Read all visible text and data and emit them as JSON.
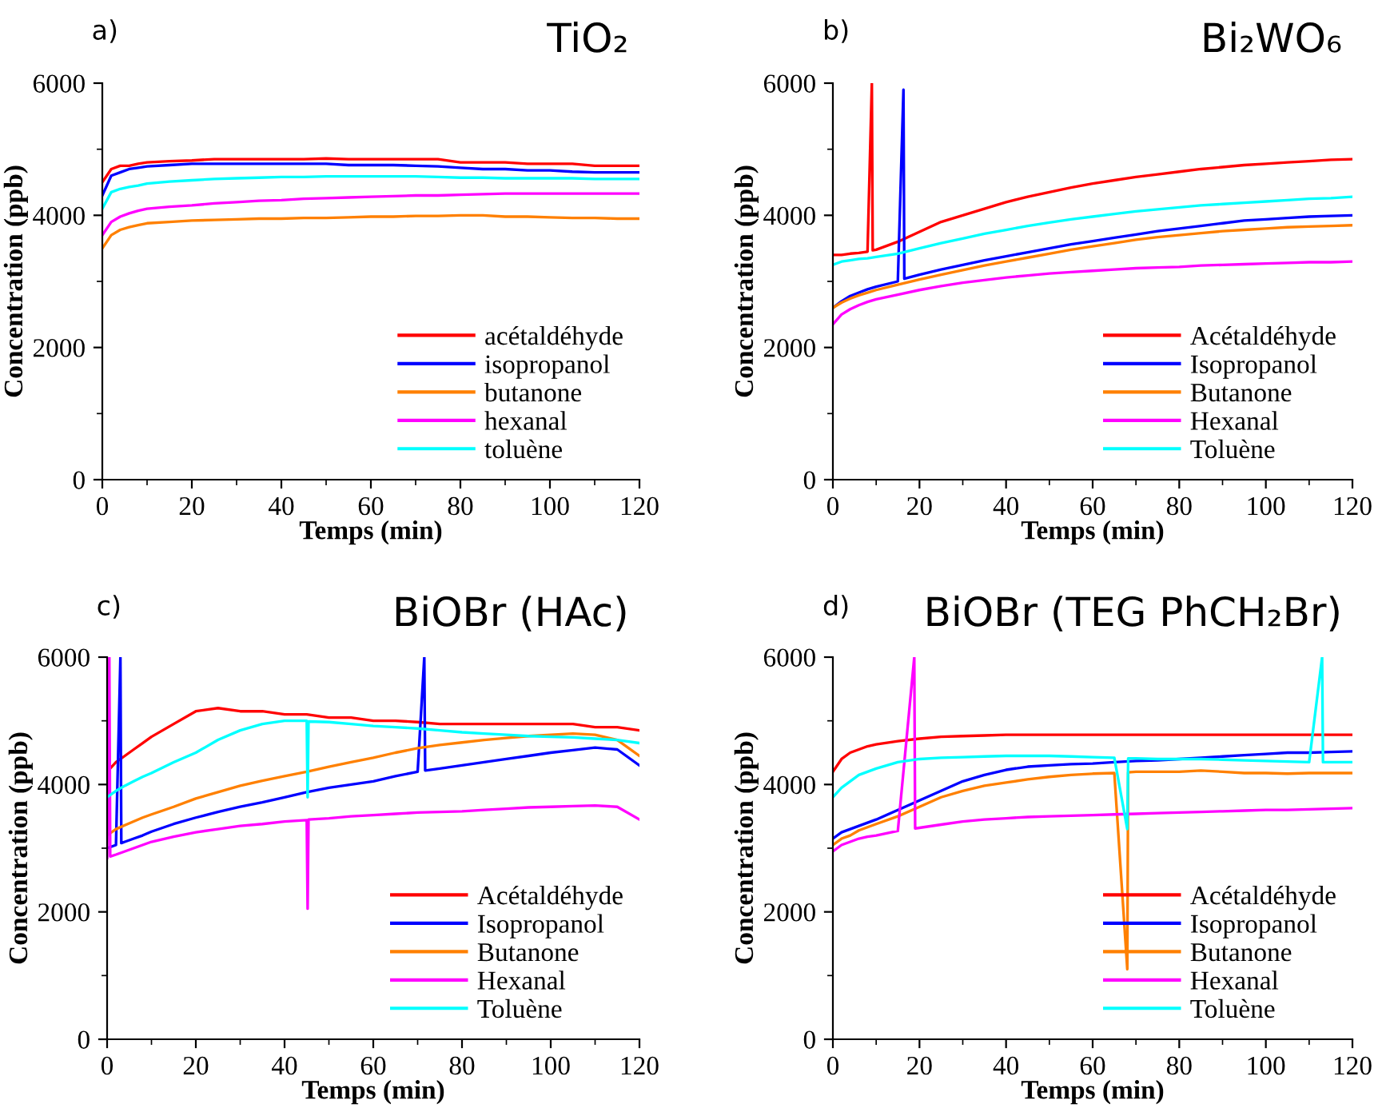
{
  "chart_data": [
    {
      "type": "line",
      "title": "TiO₂",
      "annotations": [
        "a)"
      ],
      "xlabel": "Temps (min)",
      "ylabel": "Concentration (ppb)",
      "xlim": [
        0,
        120
      ],
      "ylim": [
        0,
        6000
      ],
      "xticks": [
        0,
        20,
        40,
        60,
        80,
        100,
        120
      ],
      "yticks": [
        0,
        2000,
        4000,
        6000
      ],
      "grid": false,
      "legend": "bottom right",
      "marker": "none",
      "line_style": "solid",
      "series": [
        {
          "name": "acétaldéhyde",
          "color": "#ff0000",
          "x": [
            0,
            2,
            4,
            6,
            8,
            10,
            15,
            20,
            25,
            30,
            35,
            40,
            45,
            50,
            55,
            60,
            65,
            70,
            75,
            80,
            85,
            90,
            95,
            100,
            105,
            110,
            115,
            120
          ],
          "values": [
            4500,
            4700,
            4750,
            4750,
            4780,
            4800,
            4820,
            4830,
            4850,
            4850,
            4850,
            4850,
            4850,
            4860,
            4850,
            4850,
            4850,
            4850,
            4850,
            4800,
            4800,
            4800,
            4780,
            4780,
            4780,
            4750,
            4750,
            4750
          ]
        },
        {
          "name": "isopropanol",
          "color": "#0000ff",
          "x": [
            0,
            2,
            4,
            6,
            8,
            10,
            15,
            20,
            25,
            30,
            35,
            40,
            45,
            50,
            55,
            60,
            65,
            70,
            75,
            80,
            85,
            90,
            95,
            100,
            105,
            110,
            115,
            120
          ],
          "values": [
            4300,
            4600,
            4650,
            4700,
            4720,
            4740,
            4760,
            4780,
            4780,
            4780,
            4780,
            4780,
            4780,
            4780,
            4760,
            4760,
            4760,
            4750,
            4740,
            4720,
            4700,
            4700,
            4680,
            4680,
            4660,
            4650,
            4650,
            4650
          ]
        },
        {
          "name": "butanone",
          "color": "#ff8000",
          "x": [
            0,
            2,
            4,
            6,
            8,
            10,
            15,
            20,
            25,
            30,
            35,
            40,
            45,
            50,
            55,
            60,
            65,
            70,
            75,
            80,
            85,
            90,
            95,
            100,
            105,
            110,
            115,
            120
          ],
          "values": [
            3500,
            3700,
            3780,
            3820,
            3850,
            3880,
            3900,
            3920,
            3930,
            3940,
            3950,
            3950,
            3960,
            3960,
            3970,
            3980,
            3980,
            3990,
            3990,
            4000,
            4000,
            3980,
            3980,
            3970,
            3960,
            3960,
            3950,
            3950
          ]
        },
        {
          "name": "hexanal",
          "color": "#ff00ff",
          "x": [
            0,
            2,
            4,
            6,
            8,
            10,
            15,
            20,
            25,
            30,
            35,
            40,
            45,
            50,
            55,
            60,
            65,
            70,
            75,
            80,
            85,
            90,
            95,
            100,
            105,
            110,
            115,
            120
          ],
          "values": [
            3700,
            3900,
            3980,
            4030,
            4070,
            4100,
            4130,
            4150,
            4180,
            4200,
            4220,
            4230,
            4250,
            4260,
            4270,
            4280,
            4290,
            4300,
            4300,
            4310,
            4320,
            4330,
            4330,
            4330,
            4330,
            4330,
            4330,
            4330
          ]
        },
        {
          "name": "toluène",
          "color": "#00ffff",
          "x": [
            0,
            2,
            4,
            6,
            8,
            10,
            15,
            20,
            25,
            30,
            35,
            40,
            45,
            50,
            55,
            60,
            65,
            70,
            75,
            80,
            85,
            90,
            95,
            100,
            105,
            110,
            115,
            120
          ],
          "values": [
            4100,
            4350,
            4400,
            4430,
            4450,
            4480,
            4510,
            4530,
            4550,
            4560,
            4570,
            4580,
            4580,
            4590,
            4590,
            4590,
            4590,
            4590,
            4580,
            4570,
            4570,
            4560,
            4560,
            4560,
            4560,
            4550,
            4550,
            4550
          ]
        }
      ]
    },
    {
      "type": "line",
      "title": "Bi₂WO₆",
      "annotations": [
        "b)"
      ],
      "xlabel": "Temps (min)",
      "ylabel": "Concentration (ppb)",
      "xlim": [
        0,
        120
      ],
      "ylim": [
        0,
        6000
      ],
      "xticks": [
        0,
        20,
        40,
        60,
        80,
        100,
        120
      ],
      "yticks": [
        0,
        2000,
        4000,
        6000
      ],
      "grid": false,
      "legend": "bottom right",
      "marker": "none",
      "line_style": "solid",
      "series": [
        {
          "name": "Acétaldéhyde",
          "color": "#ff0000",
          "x": [
            0,
            2,
            4,
            6,
            8,
            9,
            9.2,
            10,
            15,
            20,
            25,
            30,
            35,
            40,
            45,
            50,
            55,
            60,
            65,
            70,
            75,
            80,
            85,
            90,
            95,
            100,
            105,
            110,
            115,
            120
          ],
          "values": [
            3400,
            3400,
            3420,
            3430,
            3450,
            6000,
            3470,
            3480,
            3600,
            3750,
            3900,
            4000,
            4100,
            4200,
            4280,
            4350,
            4420,
            4480,
            4530,
            4580,
            4620,
            4660,
            4700,
            4730,
            4760,
            4780,
            4800,
            4820,
            4840,
            4850
          ]
        },
        {
          "name": "Isopropanol",
          "color": "#0000ff",
          "x": [
            0,
            2,
            4,
            6,
            8,
            10,
            15,
            16.3,
            16.5,
            20,
            25,
            30,
            35,
            40,
            45,
            50,
            55,
            60,
            65,
            70,
            75,
            80,
            85,
            90,
            95,
            100,
            105,
            110,
            115,
            120
          ],
          "values": [
            2600,
            2700,
            2780,
            2830,
            2880,
            2920,
            3000,
            5900,
            3040,
            3100,
            3180,
            3250,
            3320,
            3380,
            3440,
            3500,
            3560,
            3610,
            3660,
            3710,
            3760,
            3800,
            3840,
            3880,
            3920,
            3940,
            3960,
            3980,
            3990,
            4000
          ]
        },
        {
          "name": "Butanone",
          "color": "#ff8000",
          "x": [
            0,
            2,
            4,
            6,
            8,
            10,
            15,
            20,
            25,
            30,
            35,
            40,
            45,
            50,
            55,
            60,
            65,
            70,
            75,
            80,
            85,
            90,
            95,
            100,
            105,
            110,
            115,
            120
          ],
          "values": [
            2600,
            2680,
            2740,
            2790,
            2830,
            2870,
            2950,
            3030,
            3100,
            3170,
            3240,
            3300,
            3360,
            3420,
            3480,
            3530,
            3580,
            3630,
            3670,
            3700,
            3730,
            3760,
            3780,
            3800,
            3820,
            3830,
            3840,
            3850
          ]
        },
        {
          "name": "Hexanal",
          "color": "#ff00ff",
          "x": [
            0,
            2,
            4,
            6,
            8,
            10,
            15,
            20,
            25,
            30,
            35,
            40,
            45,
            50,
            55,
            60,
            65,
            70,
            75,
            80,
            85,
            90,
            95,
            100,
            105,
            110,
            115,
            120
          ],
          "values": [
            2350,
            2500,
            2580,
            2640,
            2690,
            2730,
            2800,
            2870,
            2930,
            2980,
            3020,
            3060,
            3090,
            3120,
            3140,
            3160,
            3180,
            3200,
            3210,
            3220,
            3240,
            3250,
            3260,
            3270,
            3280,
            3290,
            3290,
            3300
          ]
        },
        {
          "name": "Toluène",
          "color": "#00ffff",
          "x": [
            0,
            2,
            4,
            6,
            8,
            10,
            15,
            20,
            25,
            30,
            35,
            40,
            45,
            50,
            55,
            60,
            65,
            70,
            75,
            80,
            85,
            90,
            95,
            100,
            105,
            110,
            115,
            120
          ],
          "values": [
            3250,
            3300,
            3320,
            3340,
            3350,
            3370,
            3420,
            3500,
            3580,
            3650,
            3720,
            3780,
            3840,
            3890,
            3940,
            3980,
            4020,
            4060,
            4090,
            4120,
            4150,
            4170,
            4190,
            4210,
            4230,
            4250,
            4260,
            4280
          ]
        }
      ]
    },
    {
      "type": "line",
      "title": "BiOBr (HAc)",
      "annotations": [
        "c)"
      ],
      "xlabel": "Temps (min)",
      "ylabel": "Concentration (ppb)",
      "xlim": [
        0,
        120
      ],
      "ylim": [
        0,
        6000
      ],
      "xticks": [
        0,
        20,
        40,
        60,
        80,
        100,
        120
      ],
      "yticks": [
        0,
        2000,
        4000,
        6000
      ],
      "grid": false,
      "legend": "bottom right",
      "marker": "none",
      "line_style": "solid",
      "series": [
        {
          "name": "Acétaldéhyde",
          "color": "#ff0000",
          "x": [
            0,
            2,
            4,
            6,
            8,
            10,
            15,
            20,
            25,
            30,
            35,
            40,
            45,
            50,
            55,
            60,
            65,
            70,
            75,
            80,
            85,
            90,
            95,
            100,
            105,
            110,
            115,
            120
          ],
          "values": [
            4200,
            4350,
            4450,
            4550,
            4650,
            4750,
            4950,
            5150,
            5200,
            5150,
            5150,
            5100,
            5100,
            5050,
            5050,
            5000,
            5000,
            4980,
            4950,
            4950,
            4950,
            4950,
            4950,
            4950,
            4950,
            4900,
            4900,
            4850
          ]
        },
        {
          "name": "Isopropanol",
          "color": "#0000ff",
          "x": [
            0,
            2,
            3,
            3.2,
            4,
            6,
            8,
            10,
            15,
            20,
            25,
            30,
            35,
            40,
            45,
            50,
            55,
            60,
            65,
            70,
            71.5,
            71.7,
            75,
            80,
            85,
            90,
            95,
            100,
            105,
            110,
            115,
            120
          ],
          "values": [
            3000,
            3050,
            6000,
            3080,
            3100,
            3150,
            3200,
            3260,
            3380,
            3480,
            3570,
            3650,
            3720,
            3800,
            3880,
            3950,
            4000,
            4050,
            4130,
            4200,
            6000,
            4220,
            4250,
            4300,
            4350,
            4400,
            4450,
            4500,
            4540,
            4580,
            4550,
            4300
          ]
        },
        {
          "name": "Butanone",
          "color": "#ff8000",
          "x": [
            0,
            2,
            4,
            6,
            8,
            10,
            15,
            20,
            25,
            30,
            35,
            40,
            45,
            50,
            55,
            60,
            65,
            70,
            75,
            80,
            85,
            90,
            95,
            100,
            105,
            110,
            115,
            120
          ],
          "values": [
            3200,
            3300,
            3360,
            3420,
            3480,
            3530,
            3650,
            3780,
            3880,
            3980,
            4060,
            4130,
            4200,
            4280,
            4350,
            4420,
            4500,
            4570,
            4620,
            4660,
            4700,
            4730,
            4760,
            4780,
            4800,
            4780,
            4700,
            4450
          ]
        },
        {
          "name": "Hexanal",
          "color": "#ff00ff",
          "x": [
            0,
            0.5,
            0.7,
            2,
            4,
            6,
            8,
            10,
            15,
            20,
            25,
            30,
            35,
            40,
            45,
            45.2,
            45.4,
            50,
            55,
            60,
            65,
            70,
            75,
            80,
            85,
            90,
            95,
            100,
            105,
            110,
            115,
            120
          ],
          "values": [
            2850,
            6000,
            2870,
            2900,
            2950,
            3000,
            3050,
            3100,
            3180,
            3250,
            3300,
            3350,
            3380,
            3420,
            3440,
            2050,
            3450,
            3470,
            3500,
            3520,
            3540,
            3560,
            3570,
            3580,
            3600,
            3620,
            3640,
            3650,
            3660,
            3670,
            3650,
            3450
          ]
        },
        {
          "name": "Toluène",
          "color": "#00ffff",
          "x": [
            0,
            2,
            4,
            6,
            8,
            10,
            15,
            20,
            25,
            30,
            35,
            40,
            45,
            45.2,
            45.4,
            50,
            55,
            60,
            65,
            70,
            75,
            80,
            85,
            90,
            95,
            100,
            105,
            110,
            115,
            120
          ],
          "values": [
            3800,
            3900,
            3980,
            4050,
            4120,
            4180,
            4350,
            4500,
            4700,
            4850,
            4950,
            5000,
            5000,
            3800,
            4990,
            4980,
            4950,
            4920,
            4900,
            4880,
            4850,
            4820,
            4800,
            4780,
            4760,
            4750,
            4740,
            4720,
            4700,
            4650
          ]
        }
      ]
    },
    {
      "type": "line",
      "title": "BiOBr (TEG PhCH₂Br)",
      "annotations": [
        "d)"
      ],
      "xlabel": "Temps (min)",
      "ylabel": "Concentration (ppb)",
      "xlim": [
        0,
        120
      ],
      "ylim": [
        0,
        6000
      ],
      "xticks": [
        0,
        20,
        40,
        60,
        80,
        100,
        120
      ],
      "yticks": [
        0,
        2000,
        4000,
        6000
      ],
      "grid": false,
      "legend": "bottom right",
      "marker": "none",
      "line_style": "solid",
      "series": [
        {
          "name": "Acétaldéhyde",
          "color": "#ff0000",
          "x": [
            0,
            2,
            4,
            6,
            8,
            10,
            15,
            20,
            25,
            30,
            35,
            40,
            45,
            50,
            55,
            60,
            65,
            70,
            75,
            80,
            85,
            90,
            95,
            100,
            105,
            110,
            115,
            120
          ],
          "values": [
            4200,
            4400,
            4500,
            4550,
            4600,
            4630,
            4680,
            4720,
            4750,
            4760,
            4770,
            4780,
            4780,
            4780,
            4780,
            4780,
            4780,
            4780,
            4780,
            4780,
            4780,
            4780,
            4780,
            4780,
            4780,
            4780,
            4780,
            4780
          ]
        },
        {
          "name": "Isopropanol",
          "color": "#0000ff",
          "x": [
            0,
            2,
            4,
            6,
            8,
            10,
            15,
            20,
            25,
            30,
            35,
            40,
            45,
            50,
            55,
            60,
            65,
            70,
            75,
            80,
            85,
            90,
            95,
            100,
            105,
            110,
            115,
            120
          ],
          "values": [
            3150,
            3250,
            3300,
            3350,
            3400,
            3450,
            3600,
            3750,
            3900,
            4050,
            4150,
            4230,
            4280,
            4300,
            4320,
            4330,
            4350,
            4370,
            4380,
            4400,
            4420,
            4440,
            4460,
            4480,
            4500,
            4500,
            4510,
            4520
          ]
        },
        {
          "name": "Butanone",
          "color": "#ff8000",
          "x": [
            0,
            2,
            4,
            6,
            8,
            10,
            15,
            20,
            25,
            30,
            35,
            40,
            45,
            50,
            55,
            60,
            65,
            68,
            68.2,
            70,
            75,
            80,
            85,
            90,
            95,
            100,
            105,
            110,
            115,
            120
          ],
          "values": [
            3050,
            3150,
            3200,
            3280,
            3330,
            3380,
            3500,
            3650,
            3800,
            3900,
            3980,
            4030,
            4080,
            4120,
            4150,
            4170,
            4180,
            1100,
            4190,
            4200,
            4200,
            4200,
            4220,
            4200,
            4180,
            4180,
            4170,
            4180,
            4180,
            4180
          ]
        },
        {
          "name": "Hexanal",
          "color": "#ff00ff",
          "x": [
            0,
            2,
            4,
            6,
            8,
            10,
            15,
            18.8,
            19,
            20,
            25,
            30,
            35,
            40,
            45,
            50,
            55,
            60,
            65,
            70,
            75,
            80,
            85,
            90,
            95,
            100,
            105,
            110,
            115,
            120
          ],
          "values": [
            2950,
            3050,
            3100,
            3150,
            3180,
            3200,
            3270,
            6000,
            3310,
            3320,
            3370,
            3420,
            3450,
            3470,
            3490,
            3500,
            3510,
            3520,
            3530,
            3540,
            3550,
            3560,
            3570,
            3580,
            3590,
            3600,
            3600,
            3610,
            3620,
            3630
          ]
        },
        {
          "name": "Toluène",
          "color": "#00ffff",
          "x": [
            0,
            2,
            4,
            6,
            8,
            10,
            15,
            20,
            25,
            30,
            35,
            40,
            45,
            50,
            55,
            60,
            65,
            68,
            68.2,
            70,
            75,
            80,
            85,
            90,
            95,
            100,
            105,
            110,
            113,
            113.2,
            115,
            120
          ],
          "values": [
            3800,
            3950,
            4050,
            4150,
            4200,
            4250,
            4350,
            4400,
            4420,
            4430,
            4440,
            4450,
            4450,
            4450,
            4440,
            4430,
            4420,
            3300,
            4410,
            4410,
            4400,
            4400,
            4400,
            4390,
            4380,
            4370,
            4360,
            4350,
            6000,
            4350,
            4350,
            4350
          ]
        }
      ]
    }
  ]
}
